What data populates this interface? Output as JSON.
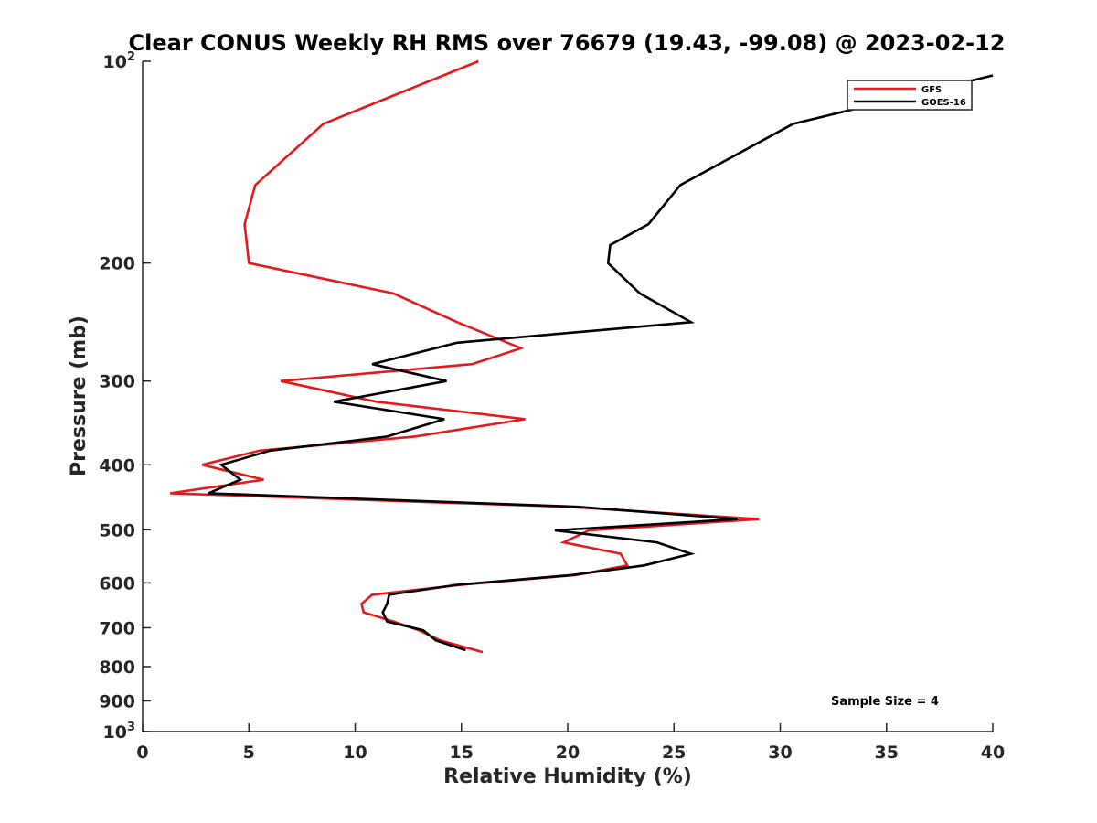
{
  "chart_data": {
    "type": "line",
    "title": "Clear CONUS Weekly RH RMS over 76679 (19.43, -99.08) @ 2023-02-12",
    "xlabel": "Relative Humidity (%)",
    "ylabel": "Pressure (mb)",
    "xlim": [
      0,
      40
    ],
    "ylim": [
      100,
      1000
    ],
    "yscale": "log",
    "y_reversed": true,
    "x_ticks": [
      0,
      5,
      10,
      15,
      20,
      25,
      30,
      35,
      40
    ],
    "y_ticks": [
      {
        "value": 100,
        "base": "10",
        "exp": "2"
      },
      {
        "value": 200,
        "label": "200"
      },
      {
        "value": 300,
        "label": "300"
      },
      {
        "value": 400,
        "label": "400"
      },
      {
        "value": 500,
        "label": "500"
      },
      {
        "value": 600,
        "label": "600"
      },
      {
        "value": 700,
        "label": "700"
      },
      {
        "value": 800,
        "label": "800"
      },
      {
        "value": 900,
        "label": "900"
      },
      {
        "value": 1000,
        "base": "10",
        "exp": "3"
      }
    ],
    "grid": false,
    "legend_position": "top-right",
    "series": [
      {
        "name": "GFS",
        "color": "#e6191c",
        "points": [
          [
            15.8,
            100
          ],
          [
            8.5,
            124
          ],
          [
            5.3,
            153
          ],
          [
            4.8,
            175
          ],
          [
            5.0,
            200
          ],
          [
            11.8,
            222
          ],
          [
            14.8,
            245
          ],
          [
            17.8,
            268
          ],
          [
            15.5,
            283
          ],
          [
            6.5,
            300
          ],
          [
            11.0,
            322
          ],
          [
            18.0,
            342
          ],
          [
            12.8,
            363
          ],
          [
            5.5,
            381
          ],
          [
            2.8,
            400
          ],
          [
            5.7,
            421
          ],
          [
            1.3,
            441
          ],
          [
            20.0,
            462
          ],
          [
            29.0,
            482
          ],
          [
            21.0,
            501
          ],
          [
            19.8,
            522
          ],
          [
            22.5,
            543
          ],
          [
            22.8,
            565
          ],
          [
            20.4,
            584
          ],
          [
            15.0,
            604
          ],
          [
            10.8,
            625
          ],
          [
            10.3,
            645
          ],
          [
            10.4,
            664
          ],
          [
            11.8,
            685
          ],
          [
            13.0,
            706
          ],
          [
            14.0,
            731
          ],
          [
            16.0,
            761
          ]
        ]
      },
      {
        "name": "GOES-16",
        "color": "#000000",
        "points": [
          [
            40.0,
            105
          ],
          [
            30.6,
            124
          ],
          [
            25.3,
            153
          ],
          [
            23.8,
            175
          ],
          [
            22.0,
            188
          ],
          [
            21.9,
            200
          ],
          [
            23.4,
            222
          ],
          [
            25.8,
            245
          ],
          [
            14.8,
            263
          ],
          [
            10.8,
            283
          ],
          [
            14.3,
            300
          ],
          [
            9.0,
            322
          ],
          [
            14.2,
            342
          ],
          [
            11.5,
            363
          ],
          [
            6.0,
            381
          ],
          [
            3.7,
            400
          ],
          [
            4.6,
            421
          ],
          [
            3.1,
            441
          ],
          [
            20.5,
            462
          ],
          [
            28.0,
            482
          ],
          [
            19.4,
            501
          ],
          [
            24.2,
            522
          ],
          [
            25.8,
            543
          ],
          [
            23.6,
            565
          ],
          [
            20.2,
            584
          ],
          [
            14.8,
            604
          ],
          [
            11.6,
            625
          ],
          [
            11.5,
            645
          ],
          [
            11.3,
            664
          ],
          [
            11.5,
            685
          ],
          [
            13.2,
            706
          ],
          [
            13.8,
            731
          ],
          [
            15.2,
            756
          ]
        ]
      }
    ],
    "annotation": "Sample Size = 4"
  }
}
